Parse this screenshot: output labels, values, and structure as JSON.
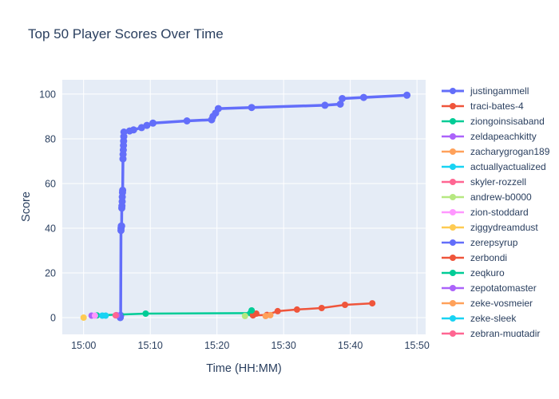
{
  "chart_data": {
    "type": "line",
    "title": "Top 50 Player Scores Over Time",
    "xlabel": "Time (HH:MM)",
    "ylabel": "Score",
    "x_unit": "minutes after 15:00",
    "xlim": [
      -3.2,
      51.3
    ],
    "ylim": [
      -7.5,
      106.4
    ],
    "grid": true,
    "legend_position": "right",
    "plot_bgcolor": "#E5ECF6",
    "paper_bgcolor": "#FFFFFF",
    "font_color": "#2A3F5F",
    "grid_color": "#FFFFFF",
    "xticks": [
      {
        "value": 0,
        "label": "15:00"
      },
      {
        "value": 10,
        "label": "15:10"
      },
      {
        "value": 20,
        "label": "15:20"
      },
      {
        "value": 30,
        "label": "15:30"
      },
      {
        "value": 40,
        "label": "15:40"
      },
      {
        "value": 50,
        "label": "15:50"
      }
    ],
    "yticks": [
      {
        "value": 0,
        "label": "0"
      },
      {
        "value": 20,
        "label": "20"
      },
      {
        "value": 40,
        "label": "40"
      },
      {
        "value": 60,
        "label": "60"
      },
      {
        "value": 80,
        "label": "80"
      },
      {
        "value": 100,
        "label": "100"
      }
    ],
    "series": [
      {
        "name": "justingammell",
        "color": "#636EFA",
        "line_width": 3.5,
        "marker_radius": 4.5,
        "points": [
          [
            5.5,
            0
          ],
          [
            5.55,
            1
          ],
          [
            5.6,
            39
          ],
          [
            5.62,
            40
          ],
          [
            5.65,
            41
          ],
          [
            5.7,
            41
          ],
          [
            5.72,
            49
          ],
          [
            5.75,
            50
          ],
          [
            5.78,
            52
          ],
          [
            5.8,
            54
          ],
          [
            5.83,
            56
          ],
          [
            5.85,
            57
          ],
          [
            5.9,
            71
          ],
          [
            5.92,
            73
          ],
          [
            5.95,
            75
          ],
          [
            5.97,
            77
          ],
          [
            6.0,
            79
          ],
          [
            6.02,
            81
          ],
          [
            6.05,
            83
          ],
          [
            6.9,
            83.5
          ],
          [
            7.5,
            84
          ],
          [
            8.7,
            85
          ],
          [
            9.5,
            86
          ],
          [
            10.4,
            87
          ],
          [
            15.5,
            88
          ],
          [
            19.2,
            88.5
          ],
          [
            19.4,
            90
          ],
          [
            19.8,
            91.5
          ],
          [
            20.2,
            93.5
          ],
          [
            25.2,
            94
          ],
          [
            36.2,
            95
          ],
          [
            38.5,
            95.5
          ],
          [
            38.8,
            98
          ],
          [
            42,
            98.5
          ],
          [
            48.5,
            99.5
          ]
        ]
      },
      {
        "name": "traci-bates-4",
        "color": "#EF553B",
        "line_width": 2.5,
        "marker_radius": 4,
        "points": [
          [
            25.4,
            1
          ],
          [
            27.5,
            1.2
          ],
          [
            29.1,
            2.9
          ],
          [
            32,
            3.6
          ],
          [
            35.7,
            4.3
          ],
          [
            39.2,
            5.7
          ],
          [
            43.3,
            6.4
          ]
        ]
      },
      {
        "name": "ziongoinsisaband",
        "color": "#00CC96",
        "line_width": 2.5,
        "marker_radius": 4,
        "points": [
          [
            2,
            1
          ],
          [
            9.3,
            1.8
          ],
          [
            25,
            2
          ]
        ]
      },
      {
        "name": "zeldapeachkitty",
        "color": "#AB63FA",
        "line_width": 2.5,
        "marker_radius": 4,
        "points": [
          [
            1.2,
            0.9
          ]
        ]
      },
      {
        "name": "zacharygrogan189",
        "color": "#FFA15A",
        "line_width": 2.5,
        "marker_radius": 4,
        "points": [
          [
            27.3,
            0.7
          ]
        ]
      },
      {
        "name": "actuallyactualized",
        "color": "#19D3F3",
        "line_width": 2.5,
        "marker_radius": 4,
        "points": [
          [
            2.8,
            0.9
          ]
        ]
      },
      {
        "name": "skyler-rozzell",
        "color": "#FF6692",
        "line_width": 2.5,
        "marker_radius": 4,
        "points": [
          [
            4.9,
            1.1
          ]
        ]
      },
      {
        "name": "andrew-b0000",
        "color": "#B6E880",
        "line_width": 2.5,
        "marker_radius": 4,
        "points": [
          [
            24.2,
            0.7
          ]
        ]
      },
      {
        "name": "zion-stoddard",
        "color": "#FF97FF",
        "line_width": 2.5,
        "marker_radius": 4,
        "points": [
          [
            1.7,
            0.9
          ]
        ]
      },
      {
        "name": "ziggydreamdust",
        "color": "#FECB52",
        "line_width": 2.5,
        "marker_radius": 4,
        "points": [
          [
            0,
            0
          ]
        ]
      },
      {
        "name": "zerepsyrup",
        "color": "#636EFA",
        "line_width": 2.5,
        "marker_radius": 4,
        "points": [
          [
            5.5,
            0.8
          ]
        ]
      },
      {
        "name": "zerbondi",
        "color": "#EF553B",
        "line_width": 2.5,
        "marker_radius": 4,
        "points": [
          [
            25.4,
            1.1
          ],
          [
            25.9,
            1.8
          ]
        ]
      },
      {
        "name": "zeqkuro",
        "color": "#00CC96",
        "line_width": 2.5,
        "marker_radius": 4,
        "points": [
          [
            25.2,
            3.2
          ]
        ]
      },
      {
        "name": "zepotatomaster",
        "color": "#AB63FA",
        "line_width": 2.5,
        "marker_radius": 4,
        "points": [
          [
            5.0,
            1.0
          ]
        ]
      },
      {
        "name": "zeke-vosmeier",
        "color": "#FFA15A",
        "line_width": 2.5,
        "marker_radius": 4,
        "points": [
          [
            28,
            1.1
          ]
        ]
      },
      {
        "name": "zeke-sleek",
        "color": "#19D3F3",
        "line_width": 2.5,
        "marker_radius": 4,
        "points": [
          [
            3.3,
            0.9
          ]
        ]
      },
      {
        "name": "zebran-muqtadir",
        "color": "#FF6692",
        "line_width": 2.5,
        "marker_radius": 4,
        "points": [
          [
            4.8,
            1.0
          ]
        ]
      }
    ]
  }
}
